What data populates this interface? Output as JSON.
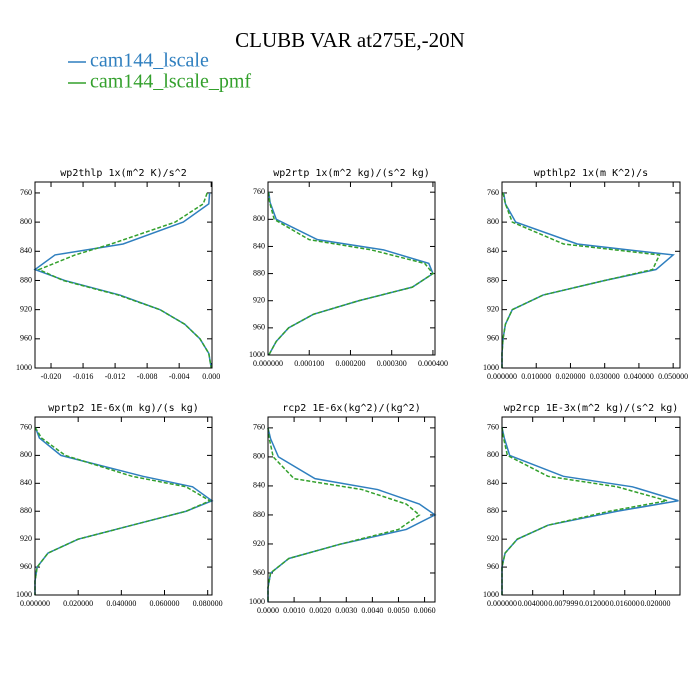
{
  "title": "CLUBB VAR at275E,-20N",
  "chart_data": [
    {
      "type": "line",
      "title": "wp2thlp  1x(m^2 K)/s^2",
      "y": [
        760,
        775,
        800,
        830,
        845,
        865,
        880,
        900,
        920,
        940,
        960,
        980,
        1000
      ],
      "series": [
        {
          "name": "cam144_lscale",
          "color": "#2f7fbf",
          "values": [
            -0.0002,
            -0.0003,
            -0.0035,
            -0.011,
            -0.0195,
            -0.022,
            -0.0183,
            -0.0114,
            -0.0064,
            -0.0033,
            -0.0014,
            -0.0003,
            0
          ]
        },
        {
          "name": "cam144_lscale_pmf",
          "color": "#33a02c",
          "values": [
            -0.0005,
            -0.001,
            -0.0045,
            -0.0125,
            -0.017,
            -0.0215,
            -0.0185,
            -0.0116,
            -0.0064,
            -0.0033,
            -0.0014,
            -0.0003,
            0
          ]
        }
      ],
      "xlim": [
        -0.022,
        0.0001
      ],
      "xticks": [
        {
          "value": -0.02,
          "label": "-0.020"
        },
        {
          "value": -0.016,
          "label": "-0.016"
        },
        {
          "value": -0.012,
          "label": "-0.012"
        },
        {
          "value": -0.008,
          "label": "-0.008"
        },
        {
          "value": -0.004,
          "label": "-0.004"
        },
        {
          "value": 0,
          "label": "0.000"
        }
      ],
      "ylim": [
        1000,
        745
      ],
      "yticks": [
        760,
        800,
        840,
        880,
        920,
        960,
        1000
      ]
    },
    {
      "type": "line",
      "title": "wp2rtp  1x(m^2 kg)/(s^2 kg)",
      "y": [
        760,
        775,
        800,
        830,
        845,
        865,
        880,
        900,
        920,
        940,
        960,
        980,
        1000
      ],
      "series": [
        {
          "name": "cam144_lscale",
          "color": "#2f7fbf",
          "values": [
            2e-06,
            5e-06,
            2e-05,
            0.00012,
            0.00028,
            0.00039,
            0.0004,
            0.00035,
            0.00022,
            0.00011,
            5e-05,
            2e-05,
            2e-06
          ]
        },
        {
          "name": "cam144_lscale_pmf",
          "color": "#33a02c",
          "values": [
            1e-06,
            4e-06,
            1.5e-05,
            0.0001,
            0.00025,
            0.00038,
            0.0004,
            0.00035,
            0.00022,
            0.00011,
            5e-05,
            2e-05,
            2e-06
          ]
        }
      ],
      "xlim": [
        0,
        0.000405
      ],
      "xticks": [
        {
          "value": 0,
          "label": "0.000000"
        },
        {
          "value": 0.0001,
          "label": "0.000100"
        },
        {
          "value": 0.0002,
          "label": "0.000200"
        },
        {
          "value": 0.0003,
          "label": "0.000300"
        },
        {
          "value": 0.0004,
          "label": "0.000400"
        }
      ],
      "ylim": [
        1000,
        745
      ],
      "yticks": [
        760,
        800,
        840,
        880,
        920,
        960,
        1000
      ]
    },
    {
      "type": "line",
      "title": "wpthlp2  1x(m K^2)/s",
      "y": [
        760,
        775,
        800,
        830,
        845,
        865,
        880,
        900,
        920,
        940,
        960,
        980,
        1000
      ],
      "series": [
        {
          "name": "cam144_lscale",
          "color": "#2f7fbf",
          "values": [
            0.0005,
            0.001,
            0.004,
            0.022,
            0.05,
            0.045,
            0.03,
            0.012,
            0.003,
            0.001,
            0.0003,
            0,
            0
          ]
        },
        {
          "name": "cam144_lscale_pmf",
          "color": "#33a02c",
          "values": [
            0.0003,
            0.001,
            0.003,
            0.018,
            0.046,
            0.044,
            0.03,
            0.012,
            0.003,
            0.001,
            0.0003,
            0,
            0
          ]
        }
      ],
      "xlim": [
        0,
        0.052
      ],
      "xticks": [
        {
          "value": 0,
          "label": "0.000000"
        },
        {
          "value": 0.01,
          "label": "0.010000"
        },
        {
          "value": 0.02,
          "label": "0.020000"
        },
        {
          "value": 0.03,
          "label": "0.030000"
        },
        {
          "value": 0.04,
          "label": "0.040000"
        },
        {
          "value": 0.05,
          "label": "0.050000"
        }
      ],
      "ylim": [
        1000,
        745
      ],
      "yticks": [
        760,
        800,
        840,
        880,
        920,
        960,
        1000
      ]
    },
    {
      "type": "line",
      "title": "wprtp2  1E-6x(m kg)/(s kg)",
      "y": [
        760,
        775,
        800,
        830,
        845,
        865,
        880,
        900,
        920,
        940,
        960,
        980,
        1000
      ],
      "series": [
        {
          "name": "cam144_lscale",
          "color": "#2f7fbf",
          "values": [
            0.0002,
            0.002,
            0.012,
            0.05,
            0.073,
            0.082,
            0.07,
            0.045,
            0.02,
            0.006,
            0.001,
            0,
            0
          ]
        },
        {
          "name": "cam144_lscale_pmf",
          "color": "#33a02c",
          "values": [
            0.0001,
            0.003,
            0.014,
            0.045,
            0.07,
            0.081,
            0.07,
            0.045,
            0.02,
            0.006,
            0.001,
            0,
            0
          ]
        }
      ],
      "xlim": [
        0,
        0.082
      ],
      "xticks": [
        {
          "value": 0,
          "label": "0.000000"
        },
        {
          "value": 0.02,
          "label": "0.020000"
        },
        {
          "value": 0.04,
          "label": "0.040000"
        },
        {
          "value": 0.06,
          "label": "0.060000"
        },
        {
          "value": 0.08,
          "label": "0.080000"
        }
      ],
      "ylim": [
        1000,
        745
      ],
      "yticks": [
        760,
        800,
        840,
        880,
        920,
        960,
        1000
      ]
    },
    {
      "type": "line",
      "title": "rcp2  1E-6x(kg^2)/(kg^2)",
      "y": [
        760,
        775,
        800,
        830,
        845,
        865,
        880,
        900,
        920,
        940,
        960,
        980,
        1000
      ],
      "series": [
        {
          "name": "cam144_lscale",
          "color": "#2f7fbf",
          "values": [
            0,
            0.0001,
            0.0004,
            0.0018,
            0.0042,
            0.0058,
            0.0064,
            0.0053,
            0.0028,
            0.0008,
            0.0001,
            0,
            0
          ]
        },
        {
          "name": "cam144_lscale_pmf",
          "color": "#33a02c",
          "values": [
            0,
            5e-05,
            0.0002,
            0.001,
            0.0036,
            0.0053,
            0.0058,
            0.005,
            0.0028,
            0.0008,
            0.0001,
            0,
            0
          ]
        }
      ],
      "xlim": [
        0,
        0.0064
      ],
      "xticks": [
        {
          "value": 0,
          "label": "0.0000"
        },
        {
          "value": 0.001,
          "label": "0.0010"
        },
        {
          "value": 0.002,
          "label": "0.0020"
        },
        {
          "value": 0.003,
          "label": "0.0030"
        },
        {
          "value": 0.004,
          "label": "0.0040"
        },
        {
          "value": 0.005,
          "label": "0.0050"
        },
        {
          "value": 0.006,
          "label": "0.0060"
        }
      ],
      "ylim": [
        1000,
        745
      ],
      "yticks": [
        760,
        800,
        840,
        880,
        920,
        960,
        1000
      ]
    },
    {
      "type": "line",
      "title": "wp2rcp  1E-3x(m^2 kg)/(s^2 kg)",
      "y": [
        760,
        775,
        800,
        830,
        845,
        865,
        880,
        900,
        920,
        940,
        960,
        980,
        1000
      ],
      "series": [
        {
          "name": "cam144_lscale",
          "color": "#2f7fbf",
          "values": [
            0,
            0.0003,
            0.001,
            0.008,
            0.017,
            0.023,
            0.015,
            0.006,
            0.002,
            0.0004,
            0,
            0,
            0
          ]
        },
        {
          "name": "cam144_lscale_pmf",
          "color": "#33a02c",
          "values": [
            0,
            0.0002,
            0.0007,
            0.006,
            0.015,
            0.0215,
            0.014,
            0.006,
            0.002,
            0.0004,
            0,
            0,
            0
          ]
        }
      ],
      "xlim": [
        0,
        0.0232
      ],
      "xticks": [
        {
          "value": 0,
          "label": "0.000000"
        },
        {
          "value": 0.004,
          "label": "0.004000"
        },
        {
          "value": 0.008,
          "label": "0.007999"
        },
        {
          "value": 0.012,
          "label": "0.012000"
        },
        {
          "value": 0.016,
          "label": "0.016000"
        },
        {
          "value": 0.02,
          "label": "0.020000"
        }
      ],
      "ylim": [
        1000,
        745
      ],
      "yticks": [
        760,
        800,
        840,
        880,
        920,
        960,
        1000
      ]
    }
  ]
}
